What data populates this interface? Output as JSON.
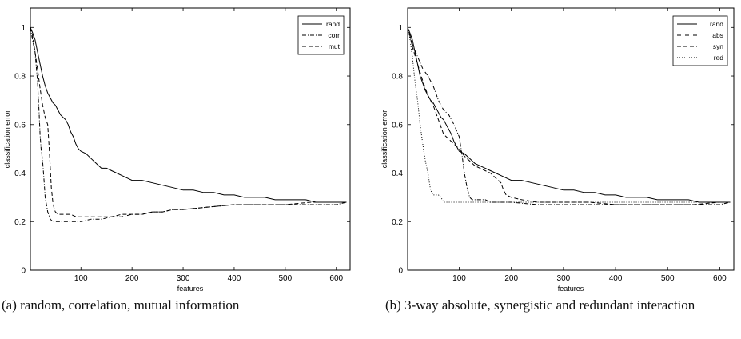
{
  "chart_data": [
    {
      "type": "line",
      "xlabel": "features",
      "ylabel": "classification error",
      "xlim": [
        1,
        627
      ],
      "ylim": [
        0,
        1.08
      ],
      "xticks": [
        100,
        200,
        300,
        400,
        500,
        600
      ],
      "yticks": [
        0,
        0.2,
        0.4,
        0.6,
        0.8,
        1
      ],
      "ytick_labels": [
        "0",
        "0.2",
        "0.4",
        "0.6",
        "0.8",
        "1"
      ],
      "legend_position": "top-right",
      "caption": "(a) random, correlation, mutual information",
      "series": [
        {
          "name": "rand",
          "style": "solid",
          "x": [
            1,
            5,
            10,
            15,
            20,
            25,
            30,
            35,
            40,
            45,
            50,
            55,
            60,
            65,
            70,
            75,
            80,
            85,
            90,
            95,
            100,
            110,
            120,
            130,
            140,
            150,
            160,
            170,
            180,
            190,
            200,
            220,
            240,
            260,
            280,
            300,
            320,
            340,
            360,
            380,
            400,
            420,
            440,
            460,
            480,
            500,
            520,
            540,
            560,
            580,
            600,
            620
          ],
          "y": [
            1.0,
            0.98,
            0.95,
            0.9,
            0.85,
            0.8,
            0.76,
            0.73,
            0.71,
            0.69,
            0.68,
            0.66,
            0.64,
            0.63,
            0.62,
            0.6,
            0.57,
            0.55,
            0.52,
            0.5,
            0.49,
            0.48,
            0.46,
            0.44,
            0.42,
            0.42,
            0.41,
            0.4,
            0.39,
            0.38,
            0.37,
            0.37,
            0.36,
            0.35,
            0.34,
            0.33,
            0.33,
            0.32,
            0.32,
            0.31,
            0.31,
            0.3,
            0.3,
            0.3,
            0.29,
            0.29,
            0.29,
            0.29,
            0.28,
            0.28,
            0.28,
            0.28
          ]
        },
        {
          "name": "corr",
          "style": "dashdot",
          "x": [
            1,
            5,
            10,
            15,
            18,
            20,
            22,
            25,
            28,
            30,
            35,
            40,
            45,
            50,
            55,
            60,
            70,
            80,
            90,
            100,
            120,
            140,
            160,
            180,
            200,
            220,
            240,
            260,
            280,
            300,
            350,
            400,
            450,
            500,
            550,
            600,
            620
          ],
          "y": [
            1.0,
            0.95,
            0.9,
            0.78,
            0.65,
            0.56,
            0.5,
            0.45,
            0.36,
            0.3,
            0.24,
            0.21,
            0.2,
            0.2,
            0.2,
            0.2,
            0.2,
            0.2,
            0.2,
            0.2,
            0.21,
            0.21,
            0.22,
            0.22,
            0.23,
            0.23,
            0.24,
            0.24,
            0.25,
            0.25,
            0.26,
            0.27,
            0.27,
            0.27,
            0.27,
            0.27,
            0.28
          ]
        },
        {
          "name": "mut",
          "style": "dashed",
          "x": [
            1,
            5,
            10,
            15,
            20,
            25,
            30,
            35,
            38,
            40,
            42,
            45,
            48,
            50,
            55,
            60,
            65,
            70,
            80,
            90,
            100,
            120,
            140,
            160,
            180,
            200,
            220,
            240,
            260,
            280,
            300,
            350,
            400,
            450,
            500,
            550,
            600,
            620
          ],
          "y": [
            1.0,
            0.97,
            0.9,
            0.83,
            0.75,
            0.68,
            0.63,
            0.6,
            0.5,
            0.42,
            0.34,
            0.28,
            0.25,
            0.24,
            0.23,
            0.23,
            0.23,
            0.23,
            0.23,
            0.22,
            0.22,
            0.22,
            0.22,
            0.22,
            0.23,
            0.23,
            0.23,
            0.24,
            0.24,
            0.25,
            0.25,
            0.26,
            0.27,
            0.27,
            0.27,
            0.28,
            0.28,
            0.28
          ]
        }
      ]
    },
    {
      "type": "line",
      "xlabel": "features",
      "ylabel": "classification error",
      "xlim": [
        1,
        627
      ],
      "ylim": [
        0,
        1.08
      ],
      "xticks": [
        100,
        200,
        300,
        400,
        500,
        600
      ],
      "yticks": [
        0,
        0.2,
        0.4,
        0.6,
        0.8,
        1
      ],
      "ytick_labels": [
        "0",
        "0.2",
        "0.4",
        "0.6",
        "0.8",
        "1"
      ],
      "legend_position": "top-right",
      "caption": "(b) 3-way absolute, synergistic and redundant interaction",
      "series": [
        {
          "name": "rand",
          "style": "solid",
          "x": [
            1,
            5,
            10,
            15,
            20,
            25,
            30,
            35,
            40,
            45,
            50,
            55,
            60,
            65,
            70,
            75,
            80,
            85,
            90,
            95,
            100,
            110,
            120,
            130,
            140,
            150,
            160,
            170,
            180,
            190,
            200,
            220,
            240,
            260,
            280,
            300,
            320,
            340,
            360,
            380,
            400,
            420,
            440,
            460,
            480,
            500,
            520,
            540,
            560,
            580,
            600,
            620
          ],
          "y": [
            1.0,
            0.98,
            0.95,
            0.9,
            0.85,
            0.8,
            0.77,
            0.74,
            0.72,
            0.7,
            0.69,
            0.67,
            0.65,
            0.63,
            0.62,
            0.6,
            0.58,
            0.56,
            0.53,
            0.51,
            0.49,
            0.48,
            0.46,
            0.44,
            0.43,
            0.42,
            0.41,
            0.4,
            0.39,
            0.38,
            0.37,
            0.37,
            0.36,
            0.35,
            0.34,
            0.33,
            0.33,
            0.32,
            0.32,
            0.31,
            0.31,
            0.3,
            0.3,
            0.3,
            0.29,
            0.29,
            0.29,
            0.29,
            0.28,
            0.28,
            0.28,
            0.28
          ]
        },
        {
          "name": "abs",
          "style": "dashdot",
          "x": [
            1,
            5,
            10,
            20,
            30,
            40,
            50,
            60,
            70,
            80,
            90,
            100,
            105,
            110,
            115,
            120,
            125,
            130,
            140,
            150,
            160,
            170,
            180,
            200,
            250,
            300,
            350,
            400,
            450,
            500,
            550,
            600,
            620
          ],
          "y": [
            1.0,
            0.97,
            0.93,
            0.88,
            0.83,
            0.8,
            0.76,
            0.7,
            0.66,
            0.64,
            0.6,
            0.55,
            0.48,
            0.4,
            0.34,
            0.3,
            0.29,
            0.29,
            0.29,
            0.29,
            0.28,
            0.28,
            0.28,
            0.28,
            0.27,
            0.27,
            0.27,
            0.27,
            0.27,
            0.27,
            0.27,
            0.27,
            0.28
          ]
        },
        {
          "name": "syn",
          "style": "dashed",
          "x": [
            1,
            5,
            10,
            20,
            30,
            40,
            50,
            60,
            70,
            80,
            90,
            100,
            110,
            120,
            130,
            140,
            150,
            160,
            170,
            180,
            185,
            190,
            200,
            220,
            250,
            300,
            350,
            400,
            450,
            500,
            550,
            600,
            620
          ],
          "y": [
            1.0,
            0.97,
            0.92,
            0.85,
            0.78,
            0.72,
            0.68,
            0.62,
            0.56,
            0.54,
            0.52,
            0.5,
            0.47,
            0.45,
            0.43,
            0.42,
            0.41,
            0.4,
            0.38,
            0.36,
            0.33,
            0.31,
            0.3,
            0.29,
            0.28,
            0.28,
            0.28,
            0.27,
            0.27,
            0.27,
            0.27,
            0.28,
            0.28
          ]
        },
        {
          "name": "red",
          "style": "dotted",
          "x": [
            1,
            5,
            10,
            15,
            20,
            25,
            30,
            35,
            40,
            45,
            50,
            55,
            60,
            65,
            70,
            75,
            80,
            90,
            100,
            150,
            200,
            250,
            300,
            400,
            500,
            600,
            620
          ],
          "y": [
            1.0,
            0.96,
            0.88,
            0.78,
            0.7,
            0.6,
            0.52,
            0.45,
            0.4,
            0.33,
            0.31,
            0.31,
            0.31,
            0.3,
            0.28,
            0.28,
            0.28,
            0.28,
            0.28,
            0.28,
            0.28,
            0.28,
            0.28,
            0.28,
            0.28,
            0.28,
            0.28
          ]
        }
      ]
    }
  ]
}
